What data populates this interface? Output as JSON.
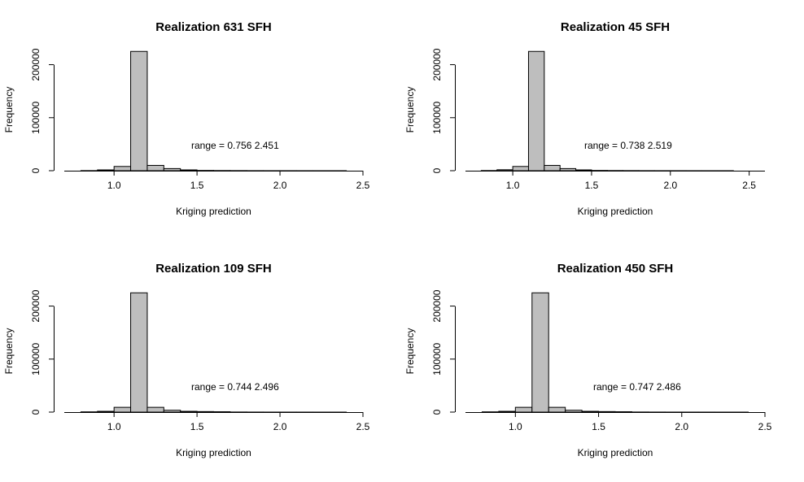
{
  "chart_data": [
    {
      "type": "bar",
      "title": "Realization 631 SFH",
      "xlabel": "Kriging prediction",
      "ylabel": "Frequency",
      "annotation": "range = 0.756 2.451",
      "xlim": [
        0.7,
        2.5
      ],
      "ylim": [
        0,
        230000
      ],
      "xticks": [
        "1.0",
        "1.5",
        "2.0",
        "2.5"
      ],
      "yticks": [
        "0",
        "100000",
        "200000"
      ],
      "grid": false,
      "bin_width": 0.1,
      "bins": [
        {
          "x0": 0.7,
          "x1": 0.8,
          "count": 0
        },
        {
          "x0": 0.8,
          "x1": 0.9,
          "count": 200
        },
        {
          "x0": 0.9,
          "x1": 1.0,
          "count": 1500
        },
        {
          "x0": 1.0,
          "x1": 1.1,
          "count": 8000
        },
        {
          "x0": 1.1,
          "x1": 1.2,
          "count": 225000
        },
        {
          "x0": 1.2,
          "x1": 1.3,
          "count": 10000
        },
        {
          "x0": 1.3,
          "x1": 1.4,
          "count": 4000
        },
        {
          "x0": 1.4,
          "x1": 1.5,
          "count": 1500
        },
        {
          "x0": 1.5,
          "x1": 1.6,
          "count": 500
        },
        {
          "x0": 1.6,
          "x1": 1.7,
          "count": 300
        },
        {
          "x0": 1.7,
          "x1": 1.8,
          "count": 200
        },
        {
          "x0": 1.8,
          "x1": 1.9,
          "count": 100
        },
        {
          "x0": 1.9,
          "x1": 2.0,
          "count": 60
        },
        {
          "x0": 2.0,
          "x1": 2.1,
          "count": 40
        },
        {
          "x0": 2.1,
          "x1": 2.2,
          "count": 30
        },
        {
          "x0": 2.2,
          "x1": 2.3,
          "count": 20
        },
        {
          "x0": 2.3,
          "x1": 2.4,
          "count": 10
        },
        {
          "x0": 2.4,
          "x1": 2.5,
          "count": 5
        }
      ]
    },
    {
      "type": "bar",
      "title": "Realization 45 SFH",
      "xlabel": "Kriging prediction",
      "ylabel": "Frequency",
      "annotation": "range = 0.738 2.519",
      "xlim": [
        0.7,
        2.6
      ],
      "ylim": [
        0,
        230000
      ],
      "xticks": [
        "1.0",
        "1.5",
        "2.0",
        "2.5"
      ],
      "yticks": [
        "0",
        "100000",
        "200000"
      ],
      "grid": false,
      "bin_width": 0.1,
      "bins": [
        {
          "x0": 0.7,
          "x1": 0.8,
          "count": 0
        },
        {
          "x0": 0.8,
          "x1": 0.9,
          "count": 300
        },
        {
          "x0": 0.9,
          "x1": 1.0,
          "count": 1800
        },
        {
          "x0": 1.0,
          "x1": 1.1,
          "count": 8000
        },
        {
          "x0": 1.1,
          "x1": 1.2,
          "count": 225000
        },
        {
          "x0": 1.2,
          "x1": 1.3,
          "count": 10000
        },
        {
          "x0": 1.3,
          "x1": 1.4,
          "count": 4000
        },
        {
          "x0": 1.4,
          "x1": 1.5,
          "count": 1500
        },
        {
          "x0": 1.5,
          "x1": 1.6,
          "count": 500
        },
        {
          "x0": 1.6,
          "x1": 1.7,
          "count": 300
        },
        {
          "x0": 1.7,
          "x1": 1.8,
          "count": 200
        },
        {
          "x0": 1.8,
          "x1": 1.9,
          "count": 100
        },
        {
          "x0": 1.9,
          "x1": 2.0,
          "count": 60
        },
        {
          "x0": 2.0,
          "x1": 2.1,
          "count": 40
        },
        {
          "x0": 2.1,
          "x1": 2.2,
          "count": 30
        },
        {
          "x0": 2.2,
          "x1": 2.3,
          "count": 20
        },
        {
          "x0": 2.3,
          "x1": 2.4,
          "count": 10
        },
        {
          "x0": 2.4,
          "x1": 2.5,
          "count": 5
        },
        {
          "x0": 2.5,
          "x1": 2.6,
          "count": 3
        }
      ]
    },
    {
      "type": "bar",
      "title": "Realization 109 SFH",
      "xlabel": "Kriging prediction",
      "ylabel": "Frequency",
      "annotation": "range = 0.744 2.496",
      "xlim": [
        0.7,
        2.5
      ],
      "ylim": [
        0,
        230000
      ],
      "xticks": [
        "1.0",
        "1.5",
        "2.0",
        "2.5"
      ],
      "yticks": [
        "0",
        "100000",
        "200000"
      ],
      "grid": false,
      "bin_width": 0.1,
      "bins": [
        {
          "x0": 0.7,
          "x1": 0.8,
          "count": 0
        },
        {
          "x0": 0.8,
          "x1": 0.9,
          "count": 500
        },
        {
          "x0": 0.9,
          "x1": 1.0,
          "count": 1500
        },
        {
          "x0": 1.0,
          "x1": 1.1,
          "count": 9000
        },
        {
          "x0": 1.1,
          "x1": 1.2,
          "count": 225000
        },
        {
          "x0": 1.2,
          "x1": 1.3,
          "count": 9000
        },
        {
          "x0": 1.3,
          "x1": 1.4,
          "count": 3500
        },
        {
          "x0": 1.4,
          "x1": 1.5,
          "count": 1500
        },
        {
          "x0": 1.5,
          "x1": 1.6,
          "count": 1000
        },
        {
          "x0": 1.6,
          "x1": 1.7,
          "count": 700
        },
        {
          "x0": 1.7,
          "x1": 1.8,
          "count": 200
        },
        {
          "x0": 1.8,
          "x1": 1.9,
          "count": 100
        },
        {
          "x0": 1.9,
          "x1": 2.0,
          "count": 60
        },
        {
          "x0": 2.0,
          "x1": 2.1,
          "count": 40
        },
        {
          "x0": 2.1,
          "x1": 2.2,
          "count": 30
        },
        {
          "x0": 2.2,
          "x1": 2.3,
          "count": 20
        },
        {
          "x0": 2.3,
          "x1": 2.4,
          "count": 10
        },
        {
          "x0": 2.4,
          "x1": 2.5,
          "count": 5
        }
      ]
    },
    {
      "type": "bar",
      "title": "Realization 450 SFH",
      "xlabel": "Kriging prediction",
      "ylabel": "Frequency",
      "annotation": "range = 0.747 2.486",
      "xlim": [
        0.7,
        2.5
      ],
      "ylim": [
        0,
        230000
      ],
      "xticks": [
        "1.0",
        "1.5",
        "2.0",
        "2.5"
      ],
      "yticks": [
        "0",
        "100000",
        "200000"
      ],
      "grid": false,
      "bin_width": 0.1,
      "bins": [
        {
          "x0": 0.7,
          "x1": 0.8,
          "count": 0
        },
        {
          "x0": 0.8,
          "x1": 0.9,
          "count": 500
        },
        {
          "x0": 0.9,
          "x1": 1.0,
          "count": 1500
        },
        {
          "x0": 1.0,
          "x1": 1.1,
          "count": 9000
        },
        {
          "x0": 1.1,
          "x1": 1.2,
          "count": 225000
        },
        {
          "x0": 1.2,
          "x1": 1.3,
          "count": 9000
        },
        {
          "x0": 1.3,
          "x1": 1.4,
          "count": 3500
        },
        {
          "x0": 1.4,
          "x1": 1.5,
          "count": 1500
        },
        {
          "x0": 1.5,
          "x1": 1.6,
          "count": 1000
        },
        {
          "x0": 1.6,
          "x1": 1.7,
          "count": 700
        },
        {
          "x0": 1.7,
          "x1": 1.8,
          "count": 200
        },
        {
          "x0": 1.8,
          "x1": 1.9,
          "count": 100
        },
        {
          "x0": 1.9,
          "x1": 2.0,
          "count": 60
        },
        {
          "x0": 2.0,
          "x1": 2.1,
          "count": 40
        },
        {
          "x0": 2.1,
          "x1": 2.2,
          "count": 30
        },
        {
          "x0": 2.2,
          "x1": 2.3,
          "count": 20
        },
        {
          "x0": 2.3,
          "x1": 2.4,
          "count": 10
        },
        {
          "x0": 2.4,
          "x1": 2.5,
          "count": 5
        }
      ]
    }
  ],
  "colors": {
    "bar_fill": "#bebebe",
    "bar_stroke": "#000000",
    "axis": "#000000",
    "background": "#ffffff"
  }
}
